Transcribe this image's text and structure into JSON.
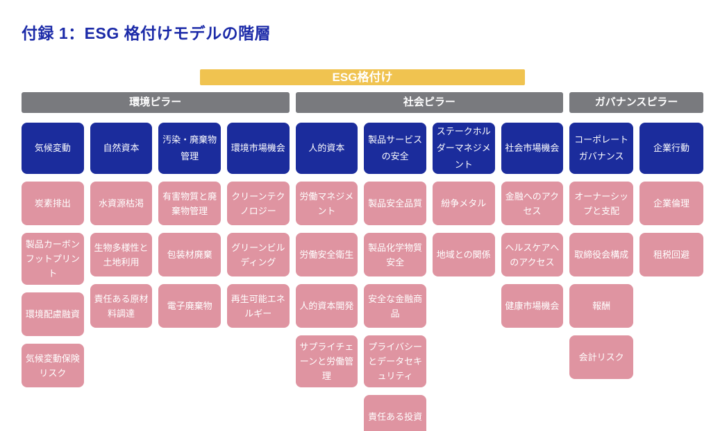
{
  "page": {
    "title": "付録 1：ESG 格付けモデルの階層"
  },
  "root": {
    "label": "ESG格付け"
  },
  "colors": {
    "title_color": "#1B2AA8",
    "root_bg": "#F0C350",
    "pillar_bg": "#797A7E",
    "category_bg": "#1B2C9C",
    "factor_bg": "#DF94A1",
    "text_on_dark": "#FFFFFF"
  },
  "pillars": [
    {
      "label": "環境ピラー",
      "categories": [
        {
          "label": "気候変動",
          "factors": [
            "炭素排出",
            "製品カーボンフットプリント",
            "環境配慮融資",
            "気候変動保険リスク"
          ]
        },
        {
          "label": "自然資本",
          "factors": [
            "水資源枯渇",
            "生物多様性と土地利用",
            "責任ある原材料調達"
          ]
        },
        {
          "label": "汚染・廃棄物管理",
          "factors": [
            "有害物質と廃棄物管理",
            "包装材廃棄",
            "電子廃棄物"
          ]
        },
        {
          "label": "環境市場機会",
          "factors": [
            "クリーンテクノロジー",
            "グリーンビルディング",
            "再生可能エネルギー"
          ]
        }
      ]
    },
    {
      "label": "社会ピラー",
      "categories": [
        {
          "label": "人的資本",
          "factors": [
            "労働マネジメント",
            "労働安全衛生",
            "人的資本開発",
            "サプライチェーンと労働管理"
          ]
        },
        {
          "label": "製品サービスの安全",
          "factors": [
            "製品安全品質",
            "製品化学物質安全",
            "安全な金融商品",
            "プライバシーとデータセキュリティ",
            "責任ある投資"
          ]
        },
        {
          "label": "ステークホルダーマネジメント",
          "factors": [
            "紛争メタル",
            "地域との関係"
          ]
        },
        {
          "label": "社会市場機会",
          "factors": [
            "金融へのアクセス",
            "ヘルスケアへのアクセス",
            "健康市場機会"
          ]
        }
      ]
    },
    {
      "label": "ガバナンスピラー",
      "categories": [
        {
          "label": "コーポレートガバナンス",
          "factors": [
            "オーナーシップと支配",
            "取締役会構成",
            "報酬",
            "会計リスク"
          ]
        },
        {
          "label": "企業行動",
          "factors": [
            "企業倫理",
            "租税回避"
          ]
        }
      ]
    }
  ]
}
